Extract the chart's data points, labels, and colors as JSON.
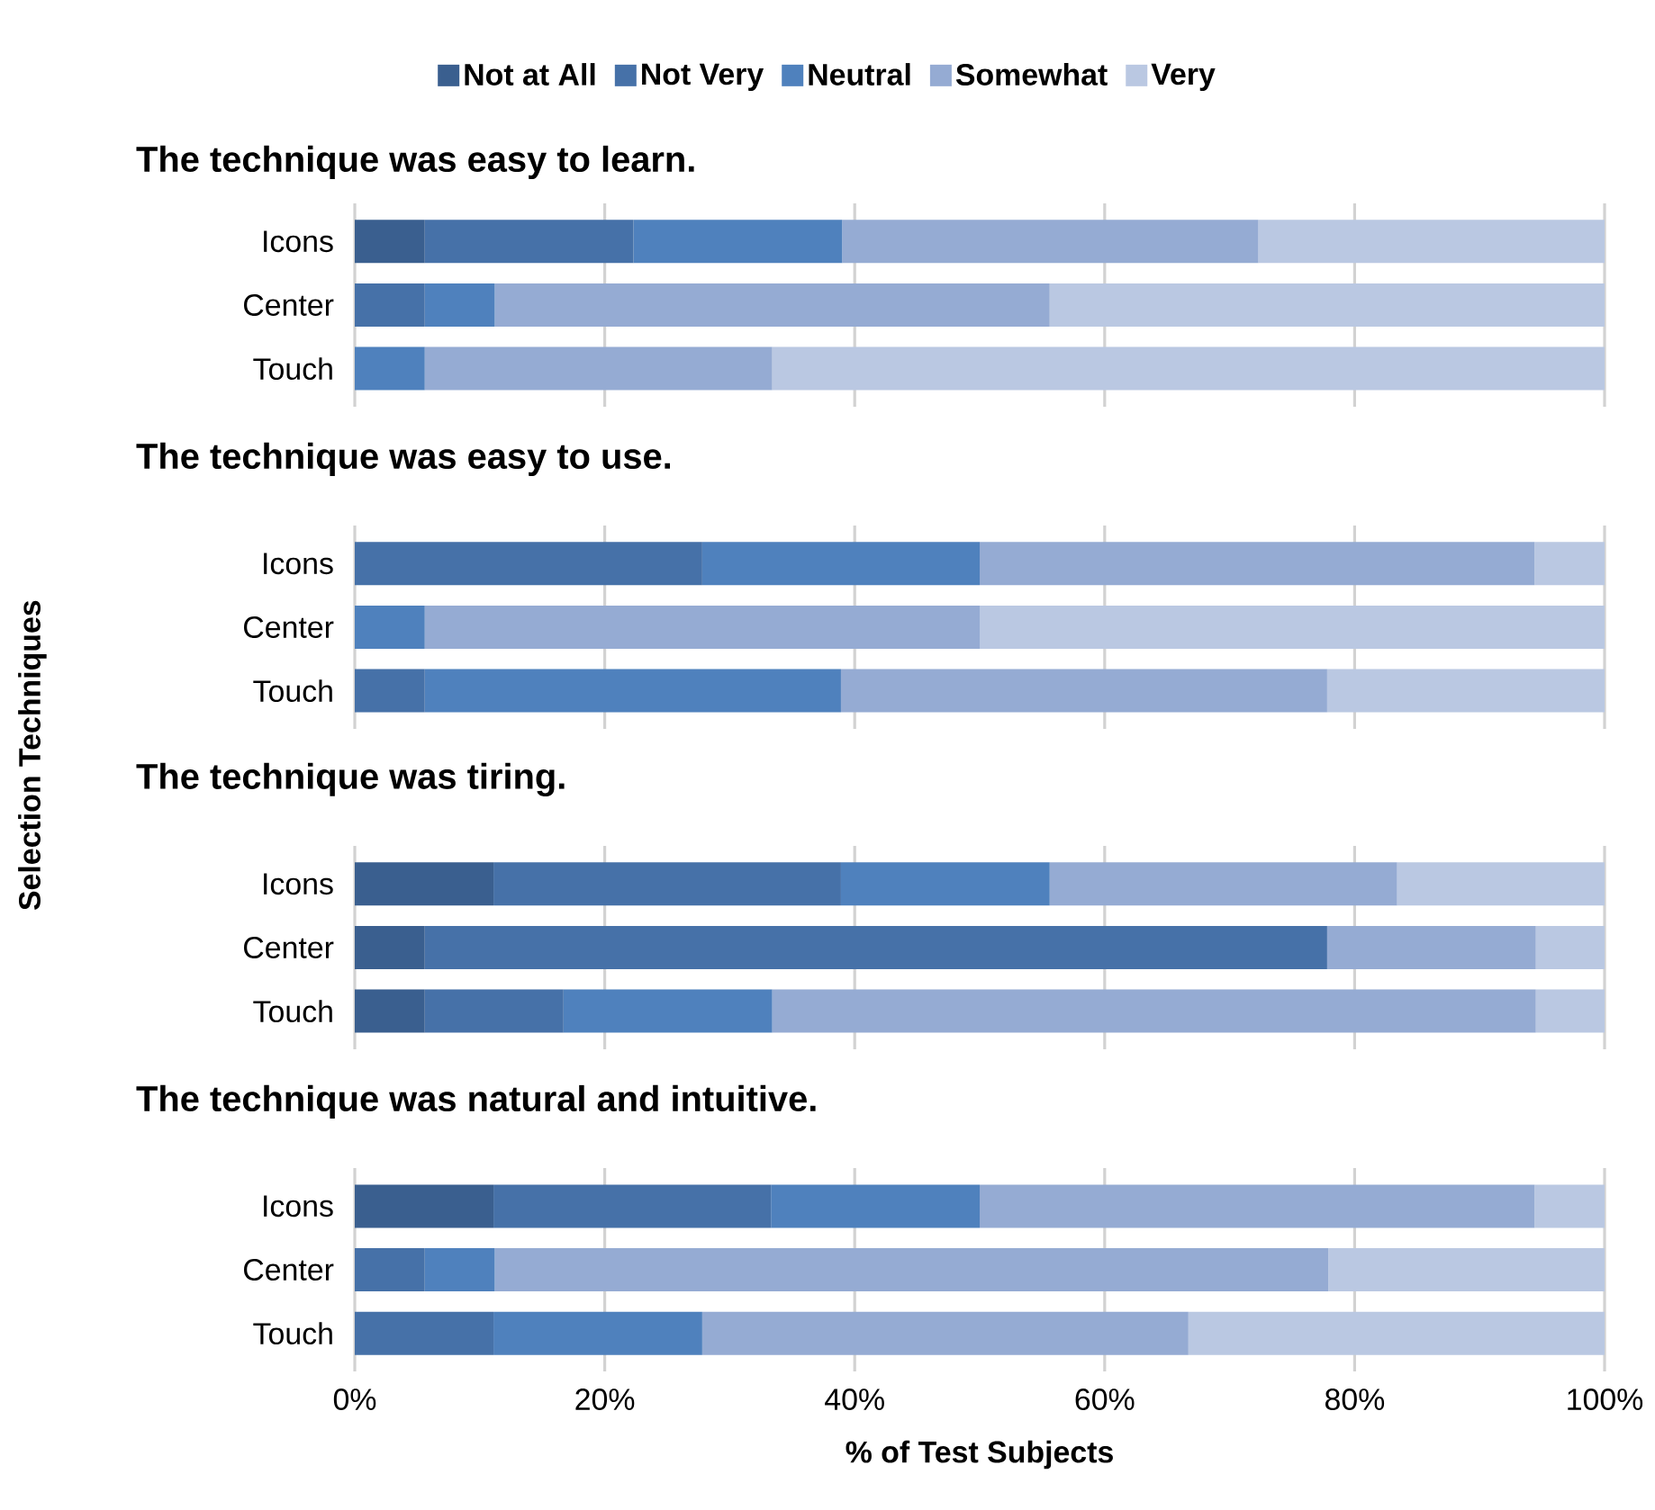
{
  "chart_data": [
    {
      "type": "bar",
      "orientation": "horizontal",
      "stacked": true,
      "title": "The technique was easy to learn.",
      "categories": [
        "Icons",
        "Center",
        "Touch"
      ],
      "xlim": [
        0,
        100
      ],
      "xticks": [
        {
          "value": 0,
          "label": null
        },
        {
          "value": 20,
          "label": null
        },
        {
          "value": 40,
          "label": null
        },
        {
          "value": 60,
          "label": null
        },
        {
          "value": 80,
          "label": null
        },
        {
          "value": 100,
          "label": null
        }
      ],
      "grid": "x",
      "tick_labels": "y",
      "legend": "top",
      "series": [
        {
          "name": "Not at All",
          "color": "#3a5f8f",
          "values": [
            5.6,
            0,
            0
          ]
        },
        {
          "name": "Not Very",
          "color": "#4671a8",
          "values": [
            16.7,
            5.6,
            0
          ]
        },
        {
          "name": "Neutral",
          "color": "#4f81bd",
          "values": [
            16.7,
            5.6,
            5.6
          ]
        },
        {
          "name": "Somewhat",
          "color": "#95abd3",
          "values": [
            33.3,
            44.4,
            27.8
          ]
        },
        {
          "name": "Very",
          "color": "#bac8e2",
          "values": [
            27.8,
            44.4,
            66.7
          ]
        }
      ]
    },
    {
      "type": "bar",
      "orientation": "horizontal",
      "stacked": true,
      "title": "The technique was easy to use.",
      "categories": [
        "Icons",
        "Center",
        "Touch"
      ],
      "xlim": [
        0,
        100
      ],
      "xticks": [
        {
          "value": 0,
          "label": null
        },
        {
          "value": 20,
          "label": null
        },
        {
          "value": 40,
          "label": null
        },
        {
          "value": 60,
          "label": null
        },
        {
          "value": 80,
          "label": null
        },
        {
          "value": 100,
          "label": null
        }
      ],
      "grid": "x",
      "tick_labels": "y",
      "series": [
        {
          "color": "#3a5f8f",
          "values": [
            0,
            0,
            0
          ]
        },
        {
          "color": "#4671a8",
          "values": [
            27.8,
            0,
            5.6
          ]
        },
        {
          "color": "#4f81bd",
          "values": [
            22.2,
            5.6,
            33.3
          ]
        },
        {
          "color": "#95abd3",
          "values": [
            44.4,
            44.4,
            38.9
          ]
        },
        {
          "color": "#bac8e2",
          "values": [
            5.6,
            50.0,
            22.2
          ]
        }
      ]
    },
    {
      "type": "bar",
      "orientation": "horizontal",
      "stacked": true,
      "title": "The technique was tiring.",
      "categories": [
        "Icons",
        "Center",
        "Touch"
      ],
      "xlim": [
        0,
        100
      ],
      "xticks": [
        {
          "value": 0,
          "label": null
        },
        {
          "value": 20,
          "label": null
        },
        {
          "value": 40,
          "label": null
        },
        {
          "value": 60,
          "label": null
        },
        {
          "value": 80,
          "label": null
        },
        {
          "value": 100,
          "label": null
        }
      ],
      "grid": "x",
      "tick_labels": "y",
      "series": [
        {
          "color": "#3a5f8f",
          "values": [
            11.1,
            5.6,
            5.6
          ]
        },
        {
          "color": "#4671a8",
          "values": [
            27.8,
            72.2,
            11.1
          ]
        },
        {
          "color": "#4f81bd",
          "values": [
            16.7,
            0,
            16.7
          ]
        },
        {
          "color": "#95abd3",
          "values": [
            27.8,
            16.7,
            61.1
          ]
        },
        {
          "color": "#bac8e2",
          "values": [
            16.7,
            5.6,
            5.6
          ]
        }
      ]
    },
    {
      "type": "bar",
      "orientation": "horizontal",
      "stacked": true,
      "title": "The technique was natural and intuitive.",
      "xlabel": "% of Test Subjects",
      "ylabel": "Selection Techniques",
      "categories": [
        "Icons",
        "Center",
        "Touch"
      ],
      "xlim": [
        0,
        100
      ],
      "xticks": [
        {
          "value": 0,
          "label": "0%"
        },
        {
          "value": 20,
          "label": "20%"
        },
        {
          "value": 40,
          "label": "40%"
        },
        {
          "value": 60,
          "label": "60%"
        },
        {
          "value": 80,
          "label": "80%"
        },
        {
          "value": 100,
          "label": "100%"
        }
      ],
      "grid": "x",
      "series": [
        {
          "color": "#3a5f8f",
          "values": [
            11.1,
            0,
            0
          ]
        },
        {
          "color": "#4671a8",
          "values": [
            22.2,
            5.6,
            11.1
          ]
        },
        {
          "color": "#4f81bd",
          "values": [
            16.7,
            5.6,
            16.7
          ]
        },
        {
          "color": "#95abd3",
          "values": [
            44.4,
            66.7,
            38.9
          ]
        },
        {
          "color": "#bac8e2",
          "values": [
            5.6,
            22.2,
            33.3
          ]
        }
      ]
    }
  ]
}
